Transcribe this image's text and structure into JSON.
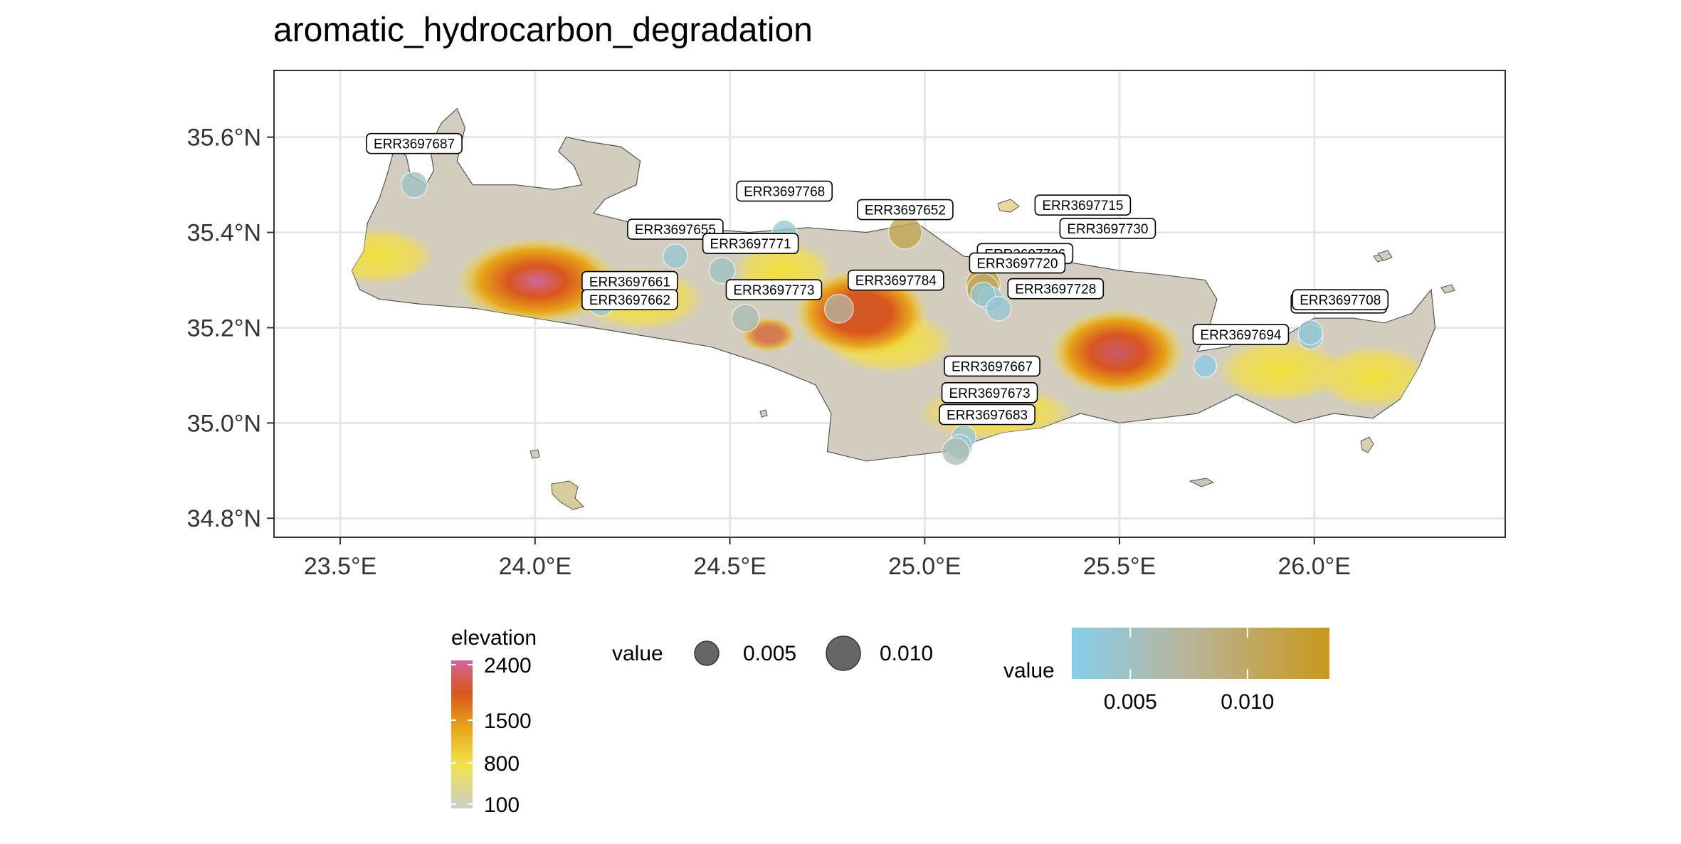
{
  "title": "aromatic_hydrocarbon_degradation",
  "axes": {
    "x_ticks": [
      {
        "value": 23.5,
        "label": "23.5°E"
      },
      {
        "value": 24.0,
        "label": "24.0°E"
      },
      {
        "value": 24.5,
        "label": "24.5°E"
      },
      {
        "value": 25.0,
        "label": "25.0°E"
      },
      {
        "value": 25.5,
        "label": "25.5°E"
      },
      {
        "value": 26.0,
        "label": "26.0°E"
      }
    ],
    "y_ticks": [
      {
        "value": 34.8,
        "label": "34.8°N"
      },
      {
        "value": 35.0,
        "label": "35.0°N"
      },
      {
        "value": 35.2,
        "label": "35.2°N"
      },
      {
        "value": 35.4,
        "label": "35.4°N"
      },
      {
        "value": 35.6,
        "label": "35.6°N"
      }
    ],
    "xlim": [
      23.33,
      26.49
    ],
    "ylim": [
      34.76,
      35.74
    ]
  },
  "samples": [
    {
      "id": "ERR3697687",
      "lon": 23.69,
      "lat": 35.5,
      "value": 0.005
    },
    {
      "id": "ERR3697768",
      "lon": 24.64,
      "lat": 35.4,
      "value": 0.004
    },
    {
      "id": "ERR3697652",
      "lon": 24.95,
      "lat": 35.4,
      "value": 0.011
    },
    {
      "id": "ERR3697655",
      "lon": 24.36,
      "lat": 35.35,
      "value": 0.004
    },
    {
      "id": "ERR3697771",
      "lon": 24.48,
      "lat": 35.32,
      "value": 0.005
    },
    {
      "id": "ERR3697661",
      "lon": 24.17,
      "lat": 35.27,
      "value": 0.004
    },
    {
      "id": "ERR3697662",
      "lon": 24.17,
      "lat": 35.25,
      "value": 0.004
    },
    {
      "id": "ERR3697773",
      "lon": 24.54,
      "lat": 35.22,
      "value": 0.006
    },
    {
      "id": "ERR3697784",
      "lon": 24.78,
      "lat": 35.24,
      "value": 0.007
    },
    {
      "id": "ERR3697715",
      "lon": 25.15,
      "lat": 35.29,
      "value": 0.012
    },
    {
      "id": "ERR3697730",
      "lon": 25.15,
      "lat": 35.28,
      "value": 0.01
    },
    {
      "id": "ERR3697726",
      "lon": 25.17,
      "lat": 35.26,
      "value": 0.004
    },
    {
      "id": "ERR3697720",
      "lon": 25.15,
      "lat": 35.27,
      "value": 0.004
    },
    {
      "id": "ERR3697728",
      "lon": 25.19,
      "lat": 35.24,
      "value": 0.004
    },
    {
      "id": "ERR3697694",
      "lon": 25.72,
      "lat": 35.12,
      "value": 0.003
    },
    {
      "id": "ERR3697707",
      "lon": 25.99,
      "lat": 35.18,
      "value": 0.004
    },
    {
      "id": "ERR3697708",
      "lon": 25.99,
      "lat": 35.19,
      "value": 0.004
    },
    {
      "id": "ERR3697667",
      "lon": 25.1,
      "lat": 34.97,
      "value": 0.004
    },
    {
      "id": "ERR3697673",
      "lon": 25.09,
      "lat": 34.95,
      "value": 0.004
    },
    {
      "id": "ERR3697683",
      "lon": 25.08,
      "lat": 34.94,
      "value": 0.006
    }
  ],
  "legends": {
    "elevation": {
      "title": "elevation",
      "ticks": [
        {
          "value": 2400,
          "label": "2400"
        },
        {
          "value": 1500,
          "label": "1500"
        },
        {
          "value": 800,
          "label": "800"
        },
        {
          "value": 100,
          "label": "100"
        }
      ],
      "colors": [
        "#cccccc",
        "#f2e24a",
        "#e6a417",
        "#d9561f",
        "#d0669a"
      ]
    },
    "size": {
      "title": "value",
      "items": [
        {
          "value": 0.005,
          "label": "0.005"
        },
        {
          "value": 0.01,
          "label": "0.010"
        }
      ]
    },
    "color": {
      "title": "value",
      "ticks": [
        {
          "value": 0.005,
          "label": "0.005"
        },
        {
          "value": 0.01,
          "label": "0.010"
        }
      ],
      "range": [
        0.0025,
        0.0135
      ],
      "low_color": "#87ceeb",
      "high_color": "#c9981c"
    }
  }
}
